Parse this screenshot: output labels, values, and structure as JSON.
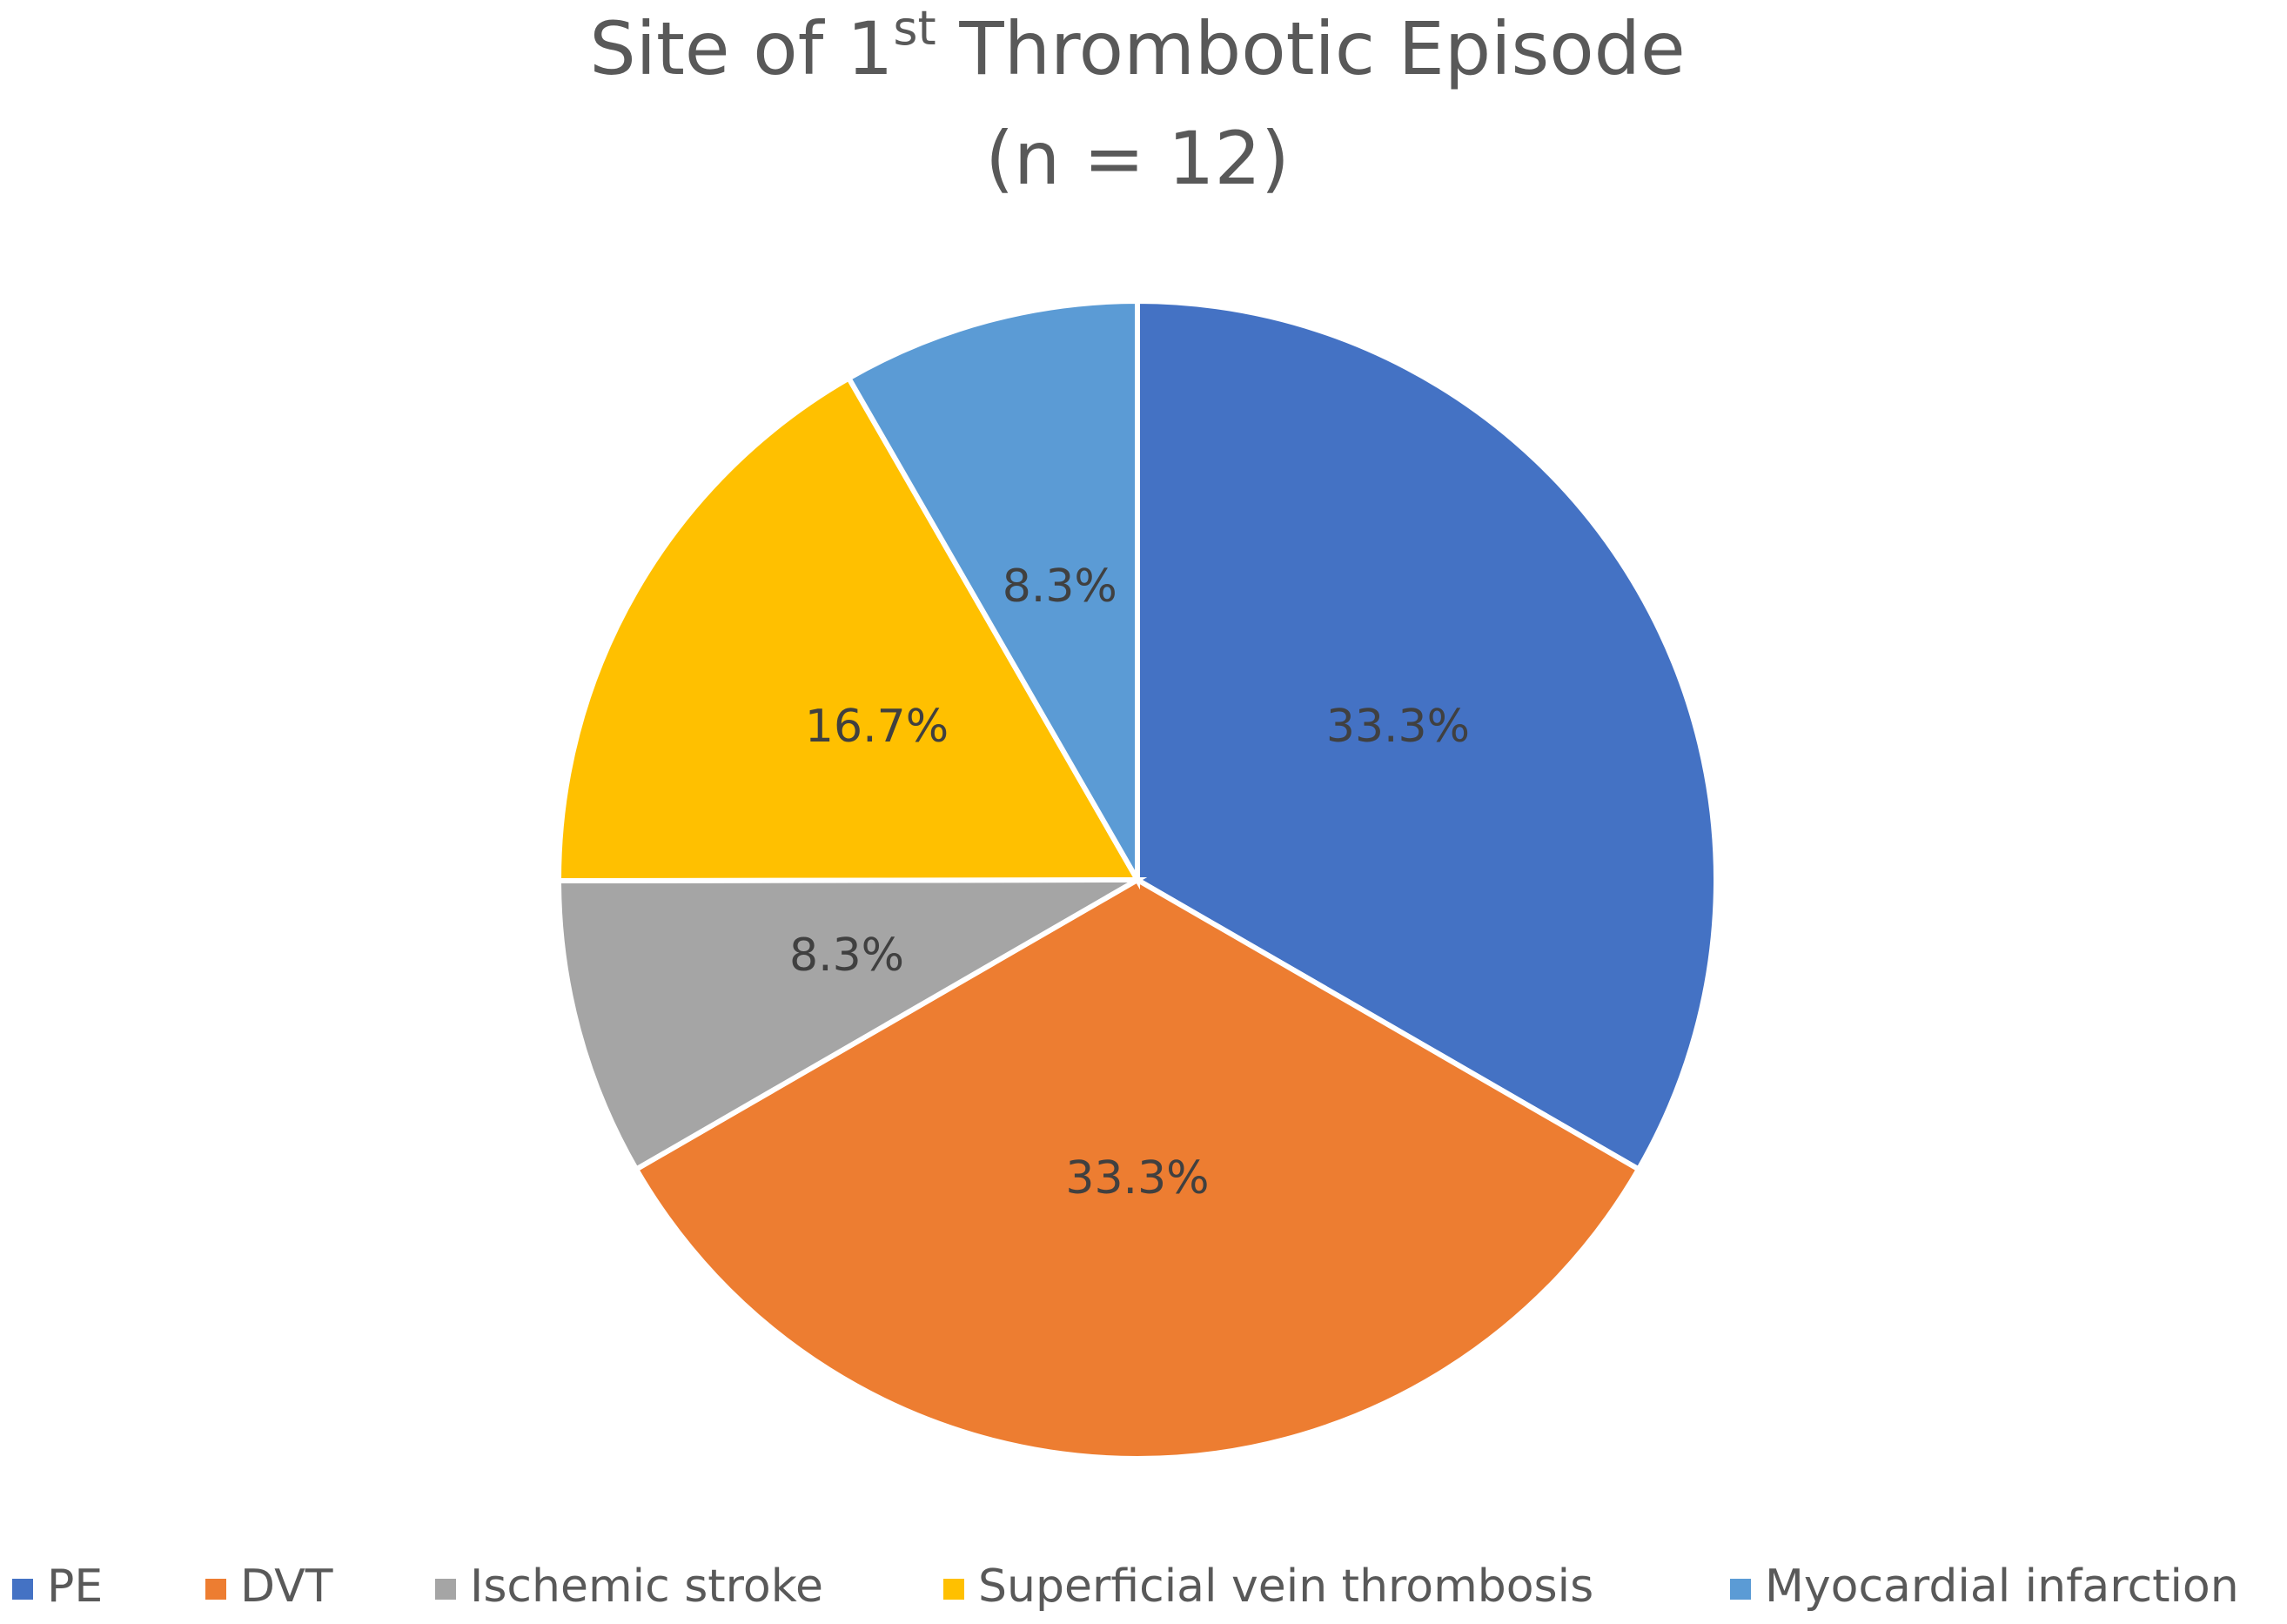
{
  "chart_data": {
    "type": "pie",
    "title": [
      "Site of 1",
      "st",
      " Thrombotic Episode"
    ],
    "subtitle": "(n = 12)",
    "categories": [
      "PE",
      "DVT",
      "Ischemic stroke",
      "Superficial vein thrombosis",
      "Myocardial infarction"
    ],
    "values": [
      33.3,
      33.3,
      8.3,
      16.7,
      8.3
    ],
    "value_labels": [
      "33.3%",
      "33.3%",
      "8.3%",
      "16.7%",
      "8.3%"
    ],
    "colors": [
      "#4472c4",
      "#ed7d31",
      "#a5a5a5",
      "#ffc000",
      "#5b9bd5"
    ],
    "legend": "bottom"
  }
}
